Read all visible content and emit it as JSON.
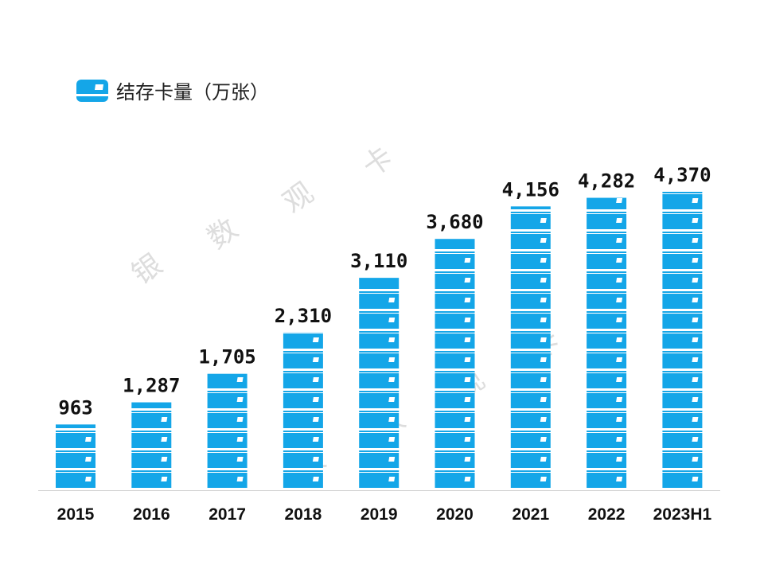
{
  "chart_data": {
    "type": "bar",
    "title": "",
    "legend": "结存卡量（万张）",
    "legend_position": "top-left",
    "categories": [
      "2015",
      "2016",
      "2017",
      "2018",
      "2019",
      "2020",
      "2021",
      "2022",
      "2023H1"
    ],
    "values": [
      963,
      1287,
      1705,
      2310,
      3110,
      3680,
      4156,
      4282,
      4370
    ],
    "labels": [
      "963",
      "1,287",
      "1,705",
      "2,310",
      "3,110",
      "3,680",
      "4,156",
      "4,282",
      "4,370"
    ],
    "ylim": [
      0,
      4370
    ],
    "grid": false,
    "bar_color": "#14a6e8"
  },
  "watermark": [
    "银",
    "数",
    "观",
    "卡"
  ]
}
